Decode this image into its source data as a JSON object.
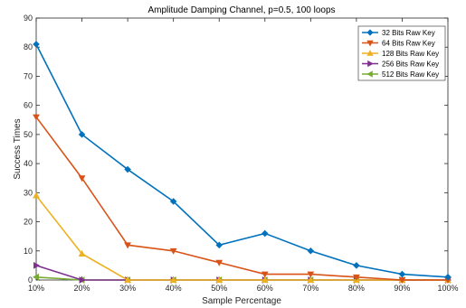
{
  "chart_data": {
    "type": "line",
    "title": "Amplitude Damping Channel, p=0.5, 100 loops",
    "xlabel": "Sample Percentage",
    "ylabel": "Success Times",
    "categories": [
      "10%",
      "20%",
      "30%",
      "40%",
      "50%",
      "60%",
      "70%",
      "80%",
      "90%",
      "100%"
    ],
    "ylim": [
      0,
      90
    ],
    "yticks": [
      0,
      10,
      20,
      30,
      40,
      50,
      60,
      70,
      80,
      90
    ],
    "grid": false,
    "legend_position": "top-right",
    "series": [
      {
        "name": "32 Bits Raw Key",
        "color": "#0072BD",
        "marker": "diamond",
        "values": [
          81,
          50,
          38,
          27,
          12,
          16,
          10,
          5,
          2,
          1
        ]
      },
      {
        "name": "64 Bits Raw Key",
        "color": "#D95319",
        "marker": "triangle-down",
        "values": [
          56,
          35,
          12,
          10,
          6,
          2,
          2,
          1,
          0,
          0
        ]
      },
      {
        "name": "128 Bits Raw Key",
        "color": "#EDB120",
        "marker": "triangle-up",
        "values": [
          29,
          9,
          0,
          0,
          0,
          0,
          0,
          0,
          0,
          0
        ]
      },
      {
        "name": "256 Bits Raw Key",
        "color": "#7E2F8E",
        "marker": "triangle-right",
        "values": [
          5,
          0,
          0,
          0,
          0,
          0,
          0,
          0,
          0,
          0
        ]
      },
      {
        "name": "512 Bits Raw Key",
        "color": "#77AC30",
        "marker": "triangle-left",
        "values": [
          1,
          0,
          0,
          0,
          0,
          0,
          0,
          0,
          0,
          0
        ]
      }
    ]
  }
}
